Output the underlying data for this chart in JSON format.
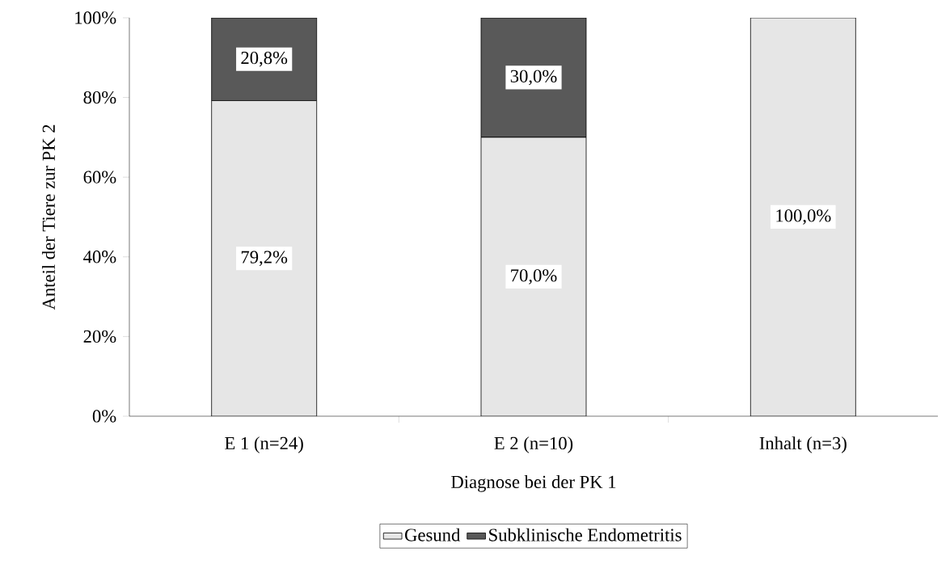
{
  "chart_data": {
    "type": "bar",
    "stacked": true,
    "xlabel": "Diagnose bei der PK 1",
    "ylabel": "Anteil der Tiere zur PK 2",
    "categories": [
      "E 1 (n=24)",
      "E 2 (n=10)",
      "Inhalt (n=3)"
    ],
    "series": [
      {
        "name": "Gesund",
        "color": "#e6e6e6",
        "values": [
          79.2,
          70.0,
          100.0
        ],
        "value_labels": [
          "79,2%",
          "70,0%",
          "100,0%"
        ]
      },
      {
        "name": "Subklinische Endometritis",
        "color": "#595959",
        "values": [
          20.8,
          30.0,
          null
        ],
        "value_labels": [
          "20,8%",
          "30,0%",
          null
        ]
      }
    ],
    "ylim": [
      0,
      100
    ],
    "yticks": [
      {
        "value": 0,
        "label": "0%"
      },
      {
        "value": 20,
        "label": "20%"
      },
      {
        "value": 40,
        "label": "40%"
      },
      {
        "value": 60,
        "label": "60%"
      },
      {
        "value": 80,
        "label": "80%"
      },
      {
        "value": 100,
        "label": "100%"
      }
    ],
    "grid": false,
    "legend": "bottom"
  }
}
